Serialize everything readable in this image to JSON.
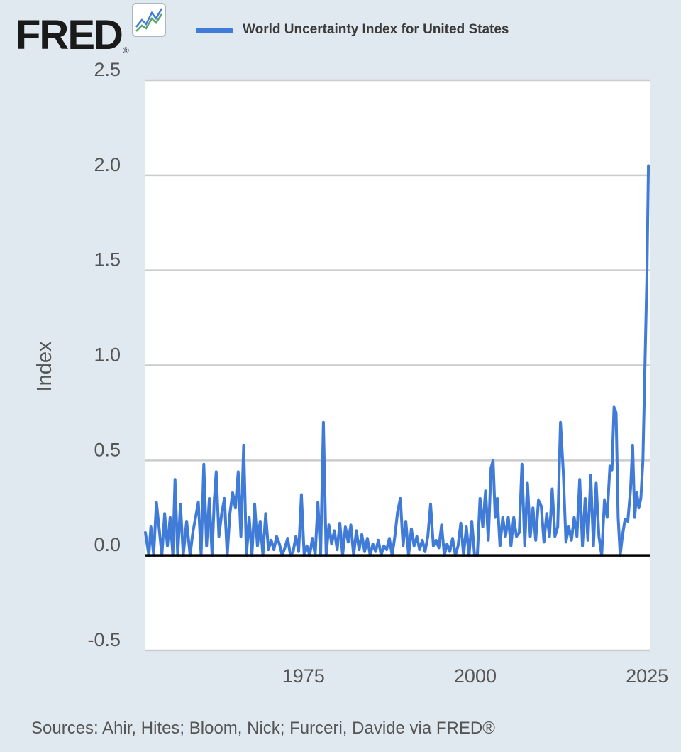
{
  "brand": {
    "name": "FRED",
    "registered_mark": "®",
    "icon": "line-graph-icon"
  },
  "legend": {
    "label": "World Uncertainty Index for United States",
    "color": "#3f7bd7"
  },
  "footer": {
    "source": "Sources: Ahir, Hites; Bloom, Nick; Furceri, Davide via FRED®"
  },
  "colors": {
    "background": "#e1e9f0",
    "plot": "#ffffff",
    "grid": "#cccccc",
    "series": "#3f7bd7",
    "zero_line": "#000000"
  },
  "chart_data": {
    "type": "line",
    "title": "",
    "xlabel": "",
    "ylabel": "Index",
    "ylim": [
      -0.5,
      2.5
    ],
    "xlim": [
      1952,
      2025.4
    ],
    "y_ticks": [
      "-0.5",
      "0.0",
      "0.5",
      "1.0",
      "1.5",
      "2.0",
      "2.5"
    ],
    "y_tick_values": [
      -0.5,
      0,
      0.5,
      1,
      1.5,
      2,
      2.5
    ],
    "x_ticks": [
      "1975",
      "2000",
      "2025"
    ],
    "x_tick_values": [
      1975,
      2000,
      2025
    ],
    "grid": true,
    "legend_position": "top",
    "series": [
      {
        "name": "World Uncertainty Index for United States",
        "points": [
          [
            1952.0,
            0.12
          ],
          [
            1952.5,
            0.0
          ],
          [
            1952.8,
            0.15
          ],
          [
            1953.2,
            0.0
          ],
          [
            1953.6,
            0.28
          ],
          [
            1954.0,
            0.14
          ],
          [
            1954.4,
            0.0
          ],
          [
            1954.8,
            0.22
          ],
          [
            1955.2,
            0.05
          ],
          [
            1955.6,
            0.2
          ],
          [
            1956.0,
            0.0
          ],
          [
            1956.3,
            0.4
          ],
          [
            1956.7,
            0.0
          ],
          [
            1957.1,
            0.27
          ],
          [
            1957.5,
            0.0
          ],
          [
            1958.0,
            0.18
          ],
          [
            1958.5,
            0.0
          ],
          [
            1958.9,
            0.12
          ],
          [
            1959.3,
            0.2
          ],
          [
            1959.7,
            0.28
          ],
          [
            1960.1,
            0.0
          ],
          [
            1960.5,
            0.48
          ],
          [
            1960.9,
            0.05
          ],
          [
            1961.3,
            0.3
          ],
          [
            1961.7,
            0.0
          ],
          [
            1962.0,
            0.28
          ],
          [
            1962.3,
            0.44
          ],
          [
            1962.7,
            0.1
          ],
          [
            1963.1,
            0.22
          ],
          [
            1963.5,
            0.3
          ],
          [
            1963.9,
            0.0
          ],
          [
            1964.3,
            0.22
          ],
          [
            1964.7,
            0.33
          ],
          [
            1965.1,
            0.25
          ],
          [
            1965.5,
            0.44
          ],
          [
            1965.9,
            0.1
          ],
          [
            1966.3,
            0.58
          ],
          [
            1966.7,
            0.0
          ],
          [
            1967.1,
            0.2
          ],
          [
            1967.5,
            0.0
          ],
          [
            1967.9,
            0.27
          ],
          [
            1968.3,
            0.05
          ],
          [
            1968.7,
            0.18
          ],
          [
            1969.1,
            0.0
          ],
          [
            1969.5,
            0.22
          ],
          [
            1969.9,
            0.03
          ],
          [
            1970.3,
            0.08
          ],
          [
            1970.7,
            0.03
          ],
          [
            1971.1,
            0.1
          ],
          [
            1971.5,
            0.06
          ],
          [
            1971.9,
            0.0
          ],
          [
            1972.3,
            0.04
          ],
          [
            1972.7,
            0.09
          ],
          [
            1973.1,
            0.0
          ],
          [
            1973.5,
            0.02
          ],
          [
            1973.9,
            0.1
          ],
          [
            1974.3,
            0.02
          ],
          [
            1974.7,
            0.32
          ],
          [
            1975.1,
            0.0
          ],
          [
            1975.5,
            0.05
          ],
          [
            1975.9,
            0.0
          ],
          [
            1976.3,
            0.09
          ],
          [
            1976.7,
            0.0
          ],
          [
            1977.1,
            0.28
          ],
          [
            1977.5,
            0.0
          ],
          [
            1977.9,
            0.7
          ],
          [
            1978.3,
            0.0
          ],
          [
            1978.7,
            0.16
          ],
          [
            1979.1,
            0.06
          ],
          [
            1979.5,
            0.13
          ],
          [
            1979.9,
            0.03
          ],
          [
            1980.3,
            0.17
          ],
          [
            1980.7,
            0.0
          ],
          [
            1981.1,
            0.15
          ],
          [
            1981.5,
            0.07
          ],
          [
            1981.9,
            0.16
          ],
          [
            1982.3,
            0.0
          ],
          [
            1982.7,
            0.13
          ],
          [
            1983.1,
            0.03
          ],
          [
            1983.5,
            0.11
          ],
          [
            1983.9,
            0.02
          ],
          [
            1984.3,
            0.09
          ],
          [
            1984.7,
            0.0
          ],
          [
            1985.1,
            0.06
          ],
          [
            1985.5,
            0.02
          ],
          [
            1985.9,
            0.08
          ],
          [
            1986.3,
            0.0
          ],
          [
            1986.7,
            0.05
          ],
          [
            1987.1,
            0.03
          ],
          [
            1987.5,
            0.09
          ],
          [
            1987.9,
            0.0
          ],
          [
            1988.3,
            0.1
          ],
          [
            1988.7,
            0.23
          ],
          [
            1989.1,
            0.3
          ],
          [
            1989.5,
            0.05
          ],
          [
            1989.9,
            0.18
          ],
          [
            1990.3,
            0.0
          ],
          [
            1990.7,
            0.14
          ],
          [
            1991.1,
            0.05
          ],
          [
            1991.5,
            0.1
          ],
          [
            1991.9,
            0.03
          ],
          [
            1992.3,
            0.08
          ],
          [
            1992.7,
            0.02
          ],
          [
            1993.1,
            0.1
          ],
          [
            1993.5,
            0.27
          ],
          [
            1993.9,
            0.05
          ],
          [
            1994.3,
            0.08
          ],
          [
            1994.7,
            0.04
          ],
          [
            1995.1,
            0.16
          ],
          [
            1995.5,
            0.0
          ],
          [
            1995.9,
            0.06
          ],
          [
            1996.3,
            0.02
          ],
          [
            1996.7,
            0.09
          ],
          [
            1997.1,
            0.0
          ],
          [
            1997.5,
            0.05
          ],
          [
            1997.9,
            0.17
          ],
          [
            1998.3,
            0.0
          ],
          [
            1998.7,
            0.15
          ],
          [
            1999.1,
            0.0
          ],
          [
            1999.5,
            0.18
          ],
          [
            1999.9,
            0.0
          ],
          [
            2000.3,
            0.0
          ],
          [
            2000.7,
            0.3
          ],
          [
            2001.1,
            0.15
          ],
          [
            2001.5,
            0.34
          ],
          [
            2001.9,
            0.08
          ],
          [
            2002.3,
            0.46
          ],
          [
            2002.6,
            0.5
          ],
          [
            2002.9,
            0.2
          ],
          [
            2003.2,
            0.3
          ],
          [
            2003.6,
            0.05
          ],
          [
            2004.0,
            0.2
          ],
          [
            2004.4,
            0.1
          ],
          [
            2004.8,
            0.2
          ],
          [
            2005.2,
            0.05
          ],
          [
            2005.6,
            0.2
          ],
          [
            2006.0,
            0.1
          ],
          [
            2006.4,
            0.12
          ],
          [
            2006.8,
            0.48
          ],
          [
            2007.2,
            0.05
          ],
          [
            2007.6,
            0.38
          ],
          [
            2008.0,
            0.1
          ],
          [
            2008.4,
            0.25
          ],
          [
            2008.8,
            0.08
          ],
          [
            2009.2,
            0.29
          ],
          [
            2009.6,
            0.26
          ],
          [
            2010.0,
            0.07
          ],
          [
            2010.4,
            0.22
          ],
          [
            2010.8,
            0.1
          ],
          [
            2011.2,
            0.35
          ],
          [
            2011.6,
            0.1
          ],
          [
            2012.0,
            0.15
          ],
          [
            2012.4,
            0.7
          ],
          [
            2012.8,
            0.45
          ],
          [
            2013.2,
            0.07
          ],
          [
            2013.6,
            0.15
          ],
          [
            2014.0,
            0.08
          ],
          [
            2014.4,
            0.2
          ],
          [
            2014.8,
            0.1
          ],
          [
            2015.2,
            0.4
          ],
          [
            2015.6,
            0.05
          ],
          [
            2016.0,
            0.3
          ],
          [
            2016.4,
            0.08
          ],
          [
            2016.8,
            0.42
          ],
          [
            2017.2,
            0.05
          ],
          [
            2017.6,
            0.38
          ],
          [
            2018.0,
            0.1
          ],
          [
            2018.4,
            0.0
          ],
          [
            2018.8,
            0.29
          ],
          [
            2019.2,
            0.2
          ],
          [
            2019.6,
            0.47
          ],
          [
            2019.9,
            0.45
          ],
          [
            2020.2,
            0.78
          ],
          [
            2020.5,
            0.75
          ],
          [
            2020.8,
            0.2
          ],
          [
            2021.1,
            0.0
          ],
          [
            2021.4,
            0.1
          ],
          [
            2021.8,
            0.19
          ],
          [
            2022.2,
            0.18
          ],
          [
            2022.6,
            0.35
          ],
          [
            2022.9,
            0.58
          ],
          [
            2023.2,
            0.2
          ],
          [
            2023.5,
            0.33
          ],
          [
            2023.8,
            0.25
          ],
          [
            2024.1,
            0.3
          ],
          [
            2024.4,
            0.5
          ],
          [
            2024.7,
            1.0
          ],
          [
            2025.0,
            1.5
          ],
          [
            2025.2,
            2.05
          ]
        ]
      }
    ]
  }
}
